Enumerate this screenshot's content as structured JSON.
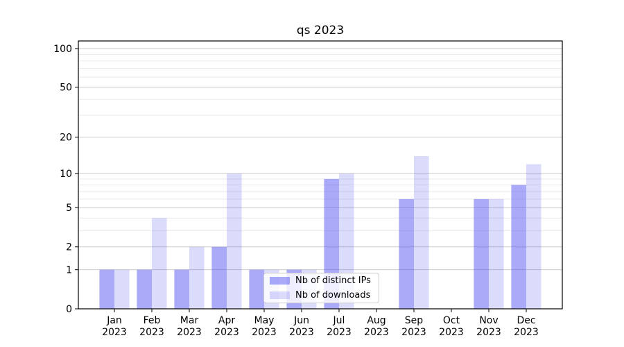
{
  "title": "qs 2023",
  "chart_data": {
    "type": "bar",
    "title": "qs 2023",
    "categories": [
      "Jan 2023",
      "Feb 2023",
      "Mar 2023",
      "Apr 2023",
      "May 2023",
      "Jun 2023",
      "Jul 2023",
      "Aug 2023",
      "Sep 2023",
      "Oct 2023",
      "Nov 2023",
      "Dec 2023"
    ],
    "x_ticklabels": [
      [
        "Jan",
        "2023"
      ],
      [
        "Feb",
        "2023"
      ],
      [
        "Mar",
        "2023"
      ],
      [
        "Apr",
        "2023"
      ],
      [
        "May",
        "2023"
      ],
      [
        "Jun",
        "2023"
      ],
      [
        "Jul",
        "2023"
      ],
      [
        "Aug",
        "2023"
      ],
      [
        "Sep",
        "2023"
      ],
      [
        "Oct",
        "2023"
      ],
      [
        "Nov",
        "2023"
      ],
      [
        "Dec",
        "2023"
      ]
    ],
    "series": [
      {
        "name": "Nb of distinct IPs",
        "color": "rgba(85,85,243,0.50)",
        "values": [
          1,
          1,
          1,
          2,
          1,
          1,
          9,
          0,
          6,
          0,
          6,
          8
        ]
      },
      {
        "name": "Nb of downloads",
        "color": "rgba(85,85,243,0.21)",
        "values": [
          1,
          4,
          2,
          10,
          1,
          1,
          10,
          0,
          14,
          0,
          6,
          12
        ]
      }
    ],
    "yscale": "log1p",
    "ylim": [
      0,
      116
    ],
    "y_ticks": [
      0,
      1,
      2,
      5,
      10,
      20,
      50,
      100
    ],
    "y_minor_ticks": [
      3,
      4,
      6,
      7,
      8,
      9,
      30,
      40,
      60,
      70,
      80,
      90
    ],
    "grid": true,
    "legend_position": "lower center",
    "colors": {
      "background": "#ffffff",
      "major_grid": "#c9c9c9",
      "minor_grid": "#eaeaea",
      "spine": "#000000",
      "text": "#000000",
      "legend_border": "#cccccc"
    }
  }
}
